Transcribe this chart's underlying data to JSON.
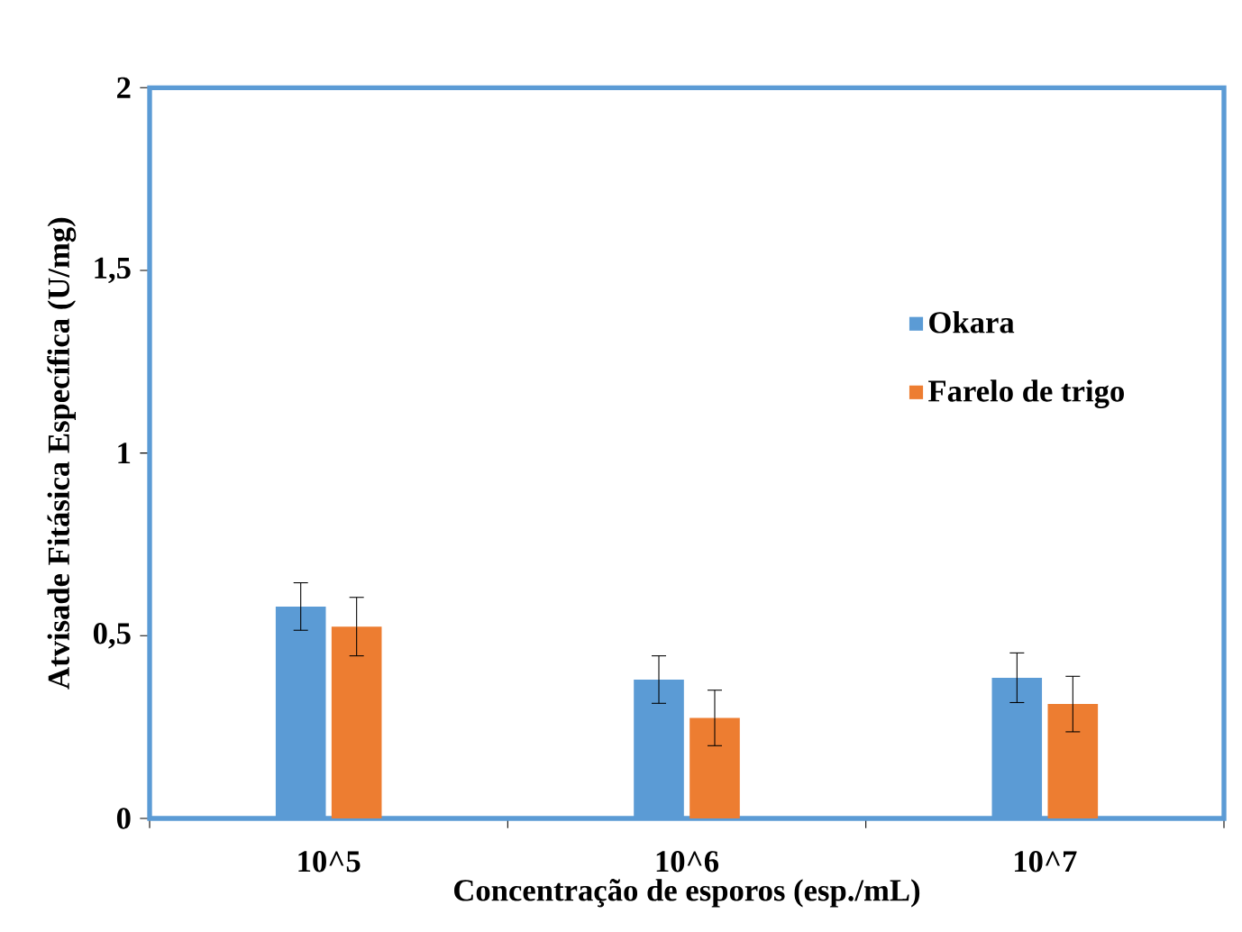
{
  "chart_data": {
    "type": "bar",
    "xlabel": "Concentração de esporos (esp./mL)",
    "ylabel": "Atvisade Fitásica Específica (U/mg)",
    "categories": [
      "10^5",
      "10^6",
      "10^7"
    ],
    "series": [
      {
        "name": "Okara",
        "color": "#5b9bd5",
        "values": [
          0.58,
          0.38,
          0.385
        ],
        "errors": [
          0.065,
          0.065,
          0.068
        ]
      },
      {
        "name": "Farelo de trigo",
        "color": "#ed7d31",
        "values": [
          0.525,
          0.275,
          0.313
        ],
        "errors": [
          0.08,
          0.076,
          0.076
        ]
      }
    ],
    "ylim": [
      0,
      2
    ],
    "yticks": [
      {
        "value": 0,
        "label": "0"
      },
      {
        "value": 0.5,
        "label": "0,5"
      },
      {
        "value": 1,
        "label": "1"
      },
      {
        "value": 1.5,
        "label": "1,5"
      },
      {
        "value": 2,
        "label": "2"
      }
    ],
    "grid": false,
    "legend": "right"
  }
}
